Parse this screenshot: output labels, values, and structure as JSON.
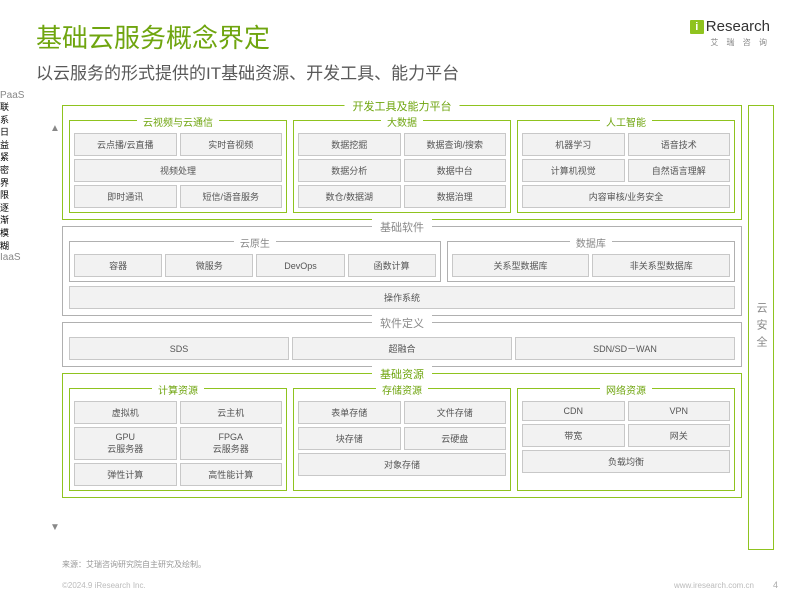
{
  "colors": {
    "green": "#8fc31f",
    "green_text": "#6fa50f",
    "gray": "#b0b0b0",
    "gray_text": "#888888",
    "cell_border": "#c8c8c8",
    "cell_bg": "#f2f2f2"
  },
  "header": {
    "title": "基础云服务概念界定",
    "subtitle": "以云服务的形式提供的IT基础资源、开发工具、能力平台"
  },
  "logo": {
    "text": "Research",
    "sub": "艾 瑞 咨 询"
  },
  "side": {
    "paas": "PaaS",
    "iaas": "IaaS",
    "mid": "联系日益紧密 界限逐渐模糊"
  },
  "security": "云安全",
  "layers": {
    "dev": {
      "label": "开发工具及能力平台",
      "groups": [
        {
          "label": "云视频与云通信",
          "rows": [
            [
              "云点播/云直播",
              "实时音视频"
            ],
            [
              "视频处理"
            ],
            [
              "即时通讯",
              "短信/语音服务"
            ]
          ]
        },
        {
          "label": "大数据",
          "rows": [
            [
              "数据挖掘",
              "数据查询/搜索"
            ],
            [
              "数据分析",
              "数据中台"
            ],
            [
              "数仓/数据湖",
              "数据治理"
            ]
          ]
        },
        {
          "label": "人工智能",
          "rows": [
            [
              "机器学习",
              "语音技术"
            ],
            [
              "计算机视觉",
              "自然语言理解"
            ],
            [
              "内容审核/业务安全"
            ]
          ]
        }
      ]
    },
    "base_sw": {
      "label": "基础软件",
      "groups": [
        {
          "label": "云原生",
          "rows": [
            [
              "容器",
              "微服务",
              "DevOps",
              "函数计算"
            ]
          ]
        },
        {
          "label": "数据库",
          "rows": [
            [
              "关系型数据库",
              "非关系型数据库"
            ]
          ]
        }
      ],
      "os": "操作系统"
    },
    "sw_def": {
      "label": "软件定义",
      "rows": [
        [
          "SDS",
          "超融合",
          "SDN/SD－WAN"
        ]
      ]
    },
    "base_res": {
      "label": "基础资源",
      "groups": [
        {
          "label": "计算资源",
          "rows": [
            [
              "虚拟机",
              "云主机"
            ],
            [
              "GPU\n云服务器",
              "FPGA\n云服务器"
            ],
            [
              "弹性计算",
              "高性能计算"
            ]
          ]
        },
        {
          "label": "存储资源",
          "rows": [
            [
              "表单存储",
              "文件存储"
            ],
            [
              "块存储",
              "云硬盘"
            ],
            [
              "对象存储"
            ]
          ]
        },
        {
          "label": "网络资源",
          "rows": [
            [
              "CDN",
              "VPN"
            ],
            [
              "带宽",
              "网关"
            ],
            [
              "负载均衡"
            ]
          ]
        }
      ]
    }
  },
  "footer": {
    "src": "来源：艾瑞咨询研究院自主研究及绘制。",
    "copy": "©2024.9 iResearch Inc.",
    "url": "www.iresearch.com.cn",
    "page": "4"
  }
}
